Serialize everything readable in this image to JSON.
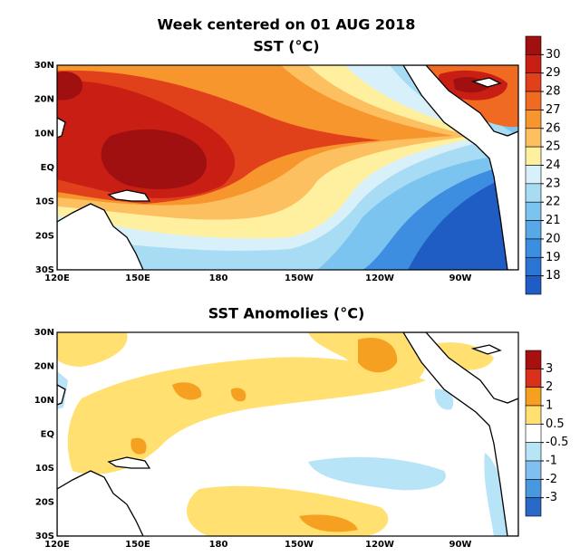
{
  "title": "Week centered on 01 AUG 2018",
  "maps": [
    {
      "title": "SST (°C)",
      "lat_labels": [
        "30N",
        "20N",
        "10N",
        "EQ",
        "10S",
        "20S",
        "30S"
      ],
      "lon_labels": [
        "120E",
        "150E",
        "180",
        "150W",
        "120W",
        "90W"
      ],
      "colorbar": {
        "ticks": [
          30,
          29,
          28,
          27,
          26,
          25,
          24,
          23,
          22,
          21,
          20,
          19,
          18
        ],
        "colors": [
          "#a01010",
          "#c81e14",
          "#e0401a",
          "#f06a22",
          "#f8962e",
          "#fcc060",
          "#fff0a0",
          "#d8f0fa",
          "#a8dcf5",
          "#7cc4f0",
          "#58a8e8",
          "#3d8de0",
          "#2c74d4",
          "#1f5cc4"
        ]
      }
    },
    {
      "title": "SST Anomolies (°C)",
      "lat_labels": [
        "30N",
        "20N",
        "10N",
        "EQ",
        "10S",
        "20S",
        "30S"
      ],
      "lon_labels": [
        "120E",
        "150E",
        "180",
        "150W",
        "120W",
        "90W"
      ],
      "colorbar": {
        "ticks": [
          3,
          2,
          1,
          0.5,
          -0.5,
          -1,
          -2,
          -3
        ],
        "colors": [
          "#a81010",
          "#d8301a",
          "#f5a020",
          "#ffe070",
          "#ffffff",
          "#b8e4f8",
          "#80c0f0",
          "#4898e0",
          "#2a68c8"
        ]
      }
    }
  ]
}
